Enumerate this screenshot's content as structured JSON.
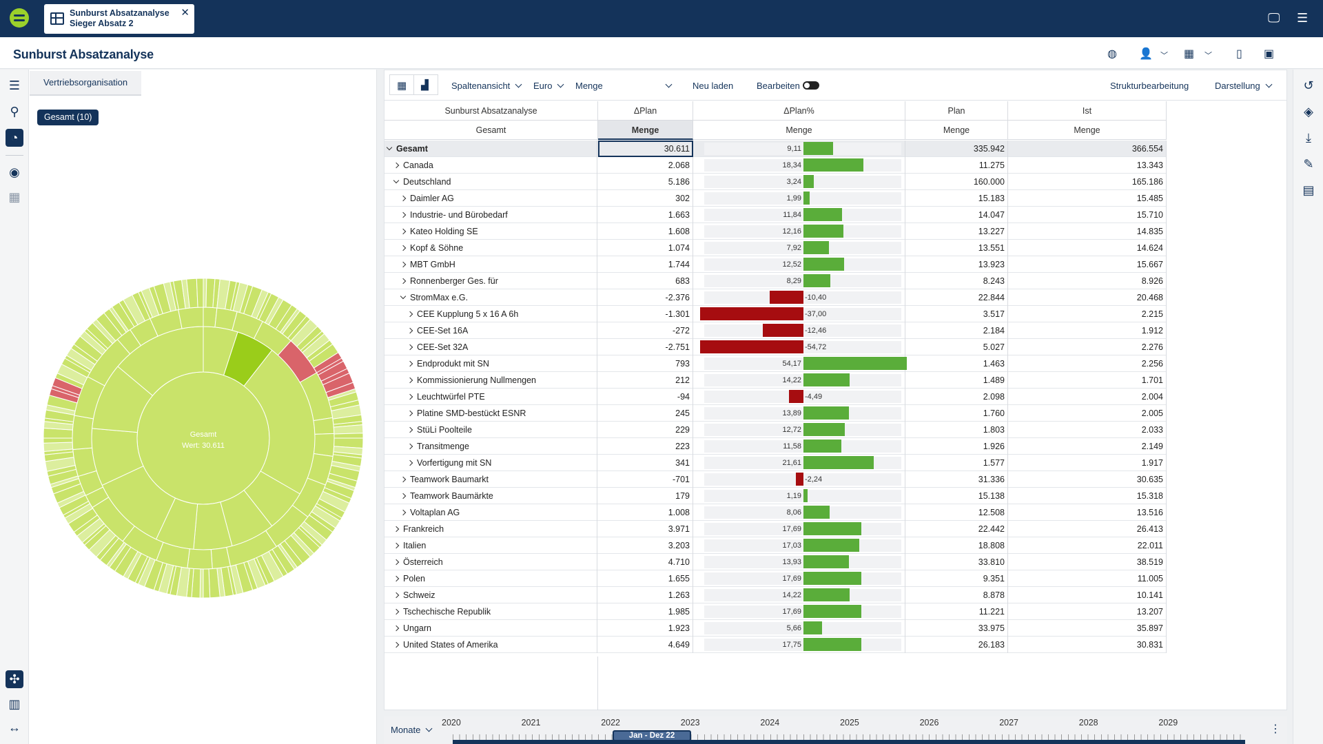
{
  "app": {
    "tab_title_line1": "Sunburst Absatzanalyse",
    "tab_title_line2": "Sieger Absatz 2",
    "page_title": "Sunburst Absatzanalyse"
  },
  "left_panel": {
    "tab_label": "Vertriebsorganisation",
    "chip_label": "Gesamt (10)",
    "sunburst_center_label": "Gesamt",
    "sunburst_center_value": "Wert: 30.611",
    "accent_green": "#c9e36a",
    "highlight_green": "#9acd1a",
    "negative_red": "#d9646a"
  },
  "toolbar": {
    "column_view": "Spaltenansicht",
    "currency": "Euro",
    "measure": "Menge",
    "reload": "Neu laden",
    "edit": "Bearbeiten",
    "structure_edit": "Strukturbearbeitung",
    "display": "Darstellung"
  },
  "grid": {
    "headers": {
      "c0_top": "Sunburst Absatzanalyse",
      "c0_bottom": "Gesamt",
      "c1_top": "ΔPlan",
      "c1_bottom": "Menge",
      "c2_top": "ΔPlan%",
      "c2_bottom": "Menge",
      "c3_top": "Plan",
      "c3_bottom": "Menge",
      "c4_top": "Ist",
      "c4_bottom": "Menge"
    },
    "rows": [
      {
        "name": "Gesamt",
        "level": 0,
        "state": "open",
        "dplan": "30.611",
        "pct": "9,11",
        "pctv": 9.11,
        "plan": "335.942",
        "ist": "366.554"
      },
      {
        "name": "Canada",
        "level": 1,
        "state": "closed",
        "dplan": "2.068",
        "pct": "18,34",
        "pctv": 18.34,
        "plan": "11.275",
        "ist": "13.343"
      },
      {
        "name": "Deutschland",
        "level": 1,
        "state": "open",
        "dplan": "5.186",
        "pct": "3,24",
        "pctv": 3.24,
        "plan": "160.000",
        "ist": "165.186"
      },
      {
        "name": "Daimler AG",
        "level": 2,
        "state": "closed",
        "dplan": "302",
        "pct": "1,99",
        "pctv": 1.99,
        "plan": "15.183",
        "ist": "15.485"
      },
      {
        "name": "Industrie- und Bürobedarf",
        "level": 2,
        "state": "closed",
        "dplan": "1.663",
        "pct": "11,84",
        "pctv": 11.84,
        "plan": "14.047",
        "ist": "15.710"
      },
      {
        "name": "Kateo Holding SE",
        "level": 2,
        "state": "closed",
        "dplan": "1.608",
        "pct": "12,16",
        "pctv": 12.16,
        "plan": "13.227",
        "ist": "14.835"
      },
      {
        "name": "Kopf & Söhne",
        "level": 2,
        "state": "closed",
        "dplan": "1.074",
        "pct": "7,92",
        "pctv": 7.92,
        "plan": "13.551",
        "ist": "14.624"
      },
      {
        "name": "MBT GmbH",
        "level": 2,
        "state": "closed",
        "dplan": "1.744",
        "pct": "12,52",
        "pctv": 12.52,
        "plan": "13.923",
        "ist": "15.667"
      },
      {
        "name": "Ronnenberger Ges. für",
        "level": 2,
        "state": "closed",
        "dplan": "683",
        "pct": "8,29",
        "pctv": 8.29,
        "plan": "8.243",
        "ist": "8.926"
      },
      {
        "name": "StromMax e.G.",
        "level": 2,
        "state": "open",
        "dplan": "-2.376",
        "pct": "-10,40",
        "pctv": -10.4,
        "plan": "22.844",
        "ist": "20.468"
      },
      {
        "name": "CEE Kupplung 5 x 16 A 6h",
        "level": 3,
        "state": "closed",
        "dplan": "-1.301",
        "pct": "-37,00",
        "pctv": -37.0,
        "plan": "3.517",
        "ist": "2.215"
      },
      {
        "name": "CEE-Set 16A",
        "level": 3,
        "state": "closed",
        "dplan": "-272",
        "pct": "-12,46",
        "pctv": -12.46,
        "plan": "2.184",
        "ist": "1.912"
      },
      {
        "name": "CEE-Set 32A",
        "level": 3,
        "state": "closed",
        "dplan": "-2.751",
        "pct": "-54,72",
        "pctv": -54.72,
        "plan": "5.027",
        "ist": "2.276"
      },
      {
        "name": "Endprodukt mit SN",
        "level": 3,
        "state": "closed",
        "dplan": "793",
        "pct": "54,17",
        "pctv": 54.17,
        "plan": "1.463",
        "ist": "2.256"
      },
      {
        "name": "Kommissionierung Nullmengen",
        "level": 3,
        "state": "closed",
        "dplan": "212",
        "pct": "14,22",
        "pctv": 14.22,
        "plan": "1.489",
        "ist": "1.701"
      },
      {
        "name": "Leuchtwürfel PTE",
        "level": 3,
        "state": "closed",
        "dplan": "-94",
        "pct": "-4,49",
        "pctv": -4.49,
        "plan": "2.098",
        "ist": "2.004"
      },
      {
        "name": "Platine SMD-bestückt ESNR",
        "level": 3,
        "state": "closed",
        "dplan": "245",
        "pct": "13,89",
        "pctv": 13.89,
        "plan": "1.760",
        "ist": "2.005"
      },
      {
        "name": "StüLi Poolteile",
        "level": 3,
        "state": "closed",
        "dplan": "229",
        "pct": "12,72",
        "pctv": 12.72,
        "plan": "1.803",
        "ist": "2.033"
      },
      {
        "name": "Transitmenge",
        "level": 3,
        "state": "closed",
        "dplan": "223",
        "pct": "11,58",
        "pctv": 11.58,
        "plan": "1.926",
        "ist": "2.149"
      },
      {
        "name": "Vorfertigung mit SN",
        "level": 3,
        "state": "closed",
        "dplan": "341",
        "pct": "21,61",
        "pctv": 21.61,
        "plan": "1.577",
        "ist": "1.917"
      },
      {
        "name": "Teamwork Baumarkt",
        "level": 2,
        "state": "closed",
        "dplan": "-701",
        "pct": "-2,24",
        "pctv": -2.24,
        "plan": "31.336",
        "ist": "30.635"
      },
      {
        "name": "Teamwork Baumärkte",
        "level": 2,
        "state": "closed",
        "dplan": "179",
        "pct": "1,19",
        "pctv": 1.19,
        "plan": "15.138",
        "ist": "15.318"
      },
      {
        "name": "Voltaplan AG",
        "level": 2,
        "state": "closed",
        "dplan": "1.008",
        "pct": "8,06",
        "pctv": 8.06,
        "plan": "12.508",
        "ist": "13.516"
      },
      {
        "name": "Frankreich",
        "level": 1,
        "state": "closed",
        "dplan": "3.971",
        "pct": "17,69",
        "pctv": 17.69,
        "plan": "22.442",
        "ist": "26.413"
      },
      {
        "name": "Italien",
        "level": 1,
        "state": "closed",
        "dplan": "3.203",
        "pct": "17,03",
        "pctv": 17.03,
        "plan": "18.808",
        "ist": "22.011"
      },
      {
        "name": "Österreich",
        "level": 1,
        "state": "closed",
        "dplan": "4.710",
        "pct": "13,93",
        "pctv": 13.93,
        "plan": "33.810",
        "ist": "38.519"
      },
      {
        "name": "Polen",
        "level": 1,
        "state": "closed",
        "dplan": "1.655",
        "pct": "17,69",
        "pctv": 17.69,
        "plan": "9.351",
        "ist": "11.005"
      },
      {
        "name": "Schweiz",
        "level": 1,
        "state": "closed",
        "dplan": "1.263",
        "pct": "14,22",
        "pctv": 14.22,
        "plan": "8.878",
        "ist": "10.141"
      },
      {
        "name": "Tschechische Republik",
        "level": 1,
        "state": "closed",
        "dplan": "1.985",
        "pct": "17,69",
        "pctv": 17.69,
        "plan": "11.221",
        "ist": "13.207"
      },
      {
        "name": "Ungarn",
        "level": 1,
        "state": "closed",
        "dplan": "1.923",
        "pct": "5,66",
        "pctv": 5.66,
        "plan": "33.975",
        "ist": "35.897"
      },
      {
        "name": "United States of Amerika",
        "level": 1,
        "state": "closed",
        "dplan": "4.649",
        "pct": "17,75",
        "pctv": 17.75,
        "plan": "26.183",
        "ist": "30.831"
      }
    ],
    "bar_positive_color": "#5aad3a",
    "bar_negative_color": "#a60d10"
  },
  "timeline": {
    "granularity": "Monate",
    "years": [
      "2020",
      "2021",
      "2022",
      "2023",
      "2024",
      "2025",
      "2026",
      "2027",
      "2028",
      "2029"
    ],
    "range_label": "Jan - Dez 22"
  }
}
